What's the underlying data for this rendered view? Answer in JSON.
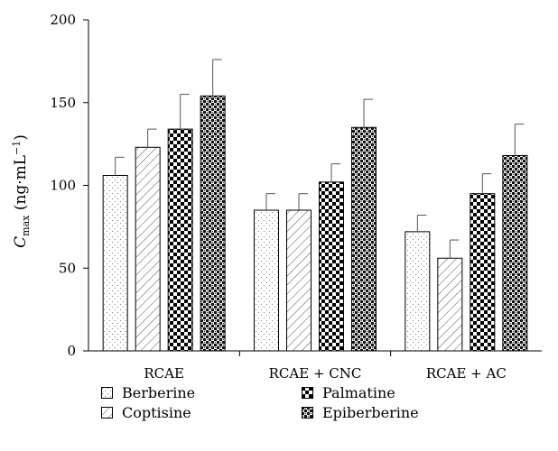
{
  "chart_data": {
    "type": "bar",
    "categories": [
      "RCAE",
      "RCAE + CNC",
      "RCAE + AC"
    ],
    "ylabel": "C_max (ng·mL⁻¹)",
    "ylabel_main": "C",
    "ylabel_sub": "max",
    "ylabel_unit": " (ng·mL",
    "ylabel_sup": "−1",
    "ylabel_close": ")",
    "ylim": [
      0,
      200
    ],
    "yticks": [
      0,
      50,
      100,
      150,
      200
    ],
    "grid": false,
    "legend_position": "bottom",
    "series": [
      {
        "name": "Berberine",
        "pattern": "dots",
        "values": [
          106,
          85,
          72
        ],
        "errors": [
          11,
          10,
          10
        ]
      },
      {
        "name": "Coptisine",
        "pattern": "hatch",
        "values": [
          123,
          85,
          56
        ],
        "errors": [
          11,
          10,
          11
        ]
      },
      {
        "name": "Palmatine",
        "pattern": "checker",
        "values": [
          134,
          102,
          95
        ],
        "errors": [
          21,
          11,
          12
        ]
      },
      {
        "name": "Epiberberine",
        "pattern": "dense-checker",
        "values": [
          154,
          135,
          118
        ],
        "errors": [
          22,
          17,
          19
        ]
      }
    ]
  }
}
